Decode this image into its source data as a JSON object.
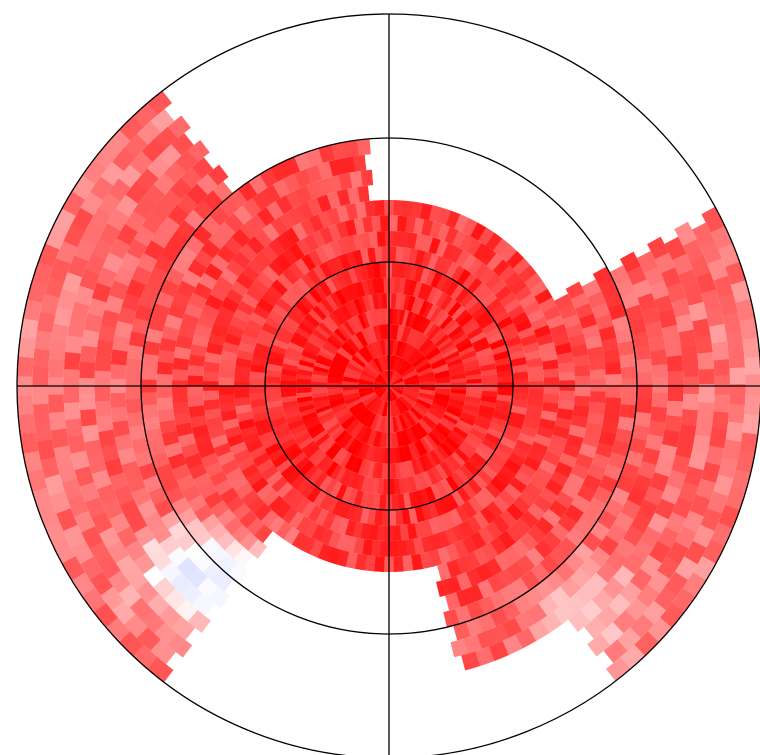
{
  "chart_data": {
    "type": "heatmap",
    "projection": "polar",
    "title": "",
    "xlabel": "",
    "ylabel": "",
    "radius_range": [
      0,
      3
    ],
    "reference_rings": [
      1,
      2,
      3
    ],
    "crosshair": true,
    "color_scale": {
      "low": "#b0b8ff",
      "mid": "#ffffff",
      "high": "#ff0000",
      "range": [
        -1,
        1
      ]
    },
    "coverage": {
      "full_radius": 1.5,
      "outer_bands": [
        {
          "theta_from": -52,
          "theta_to": 28,
          "r_max": 3.0
        },
        {
          "theta_from": 128,
          "theta_to": 232,
          "r_max": 3.0
        },
        {
          "theta_from": -75,
          "theta_to": -52,
          "r_max": 2.4
        },
        {
          "theta_from": 95,
          "theta_to": 128,
          "r_max": 2.0
        }
      ],
      "rings_count": 24,
      "theta_step_deg": 3
    },
    "value_profile": {
      "center_value": 0.95,
      "outer_value": 0.55,
      "low_regions": [
        {
          "theta_deg": 237,
          "r": 2.0,
          "value": -0.3
        },
        {
          "theta_deg": 223,
          "r": 2.2,
          "value": -0.35
        },
        {
          "theta_deg": 312,
          "r": 2.4,
          "value": 0.1
        }
      ]
    }
  }
}
